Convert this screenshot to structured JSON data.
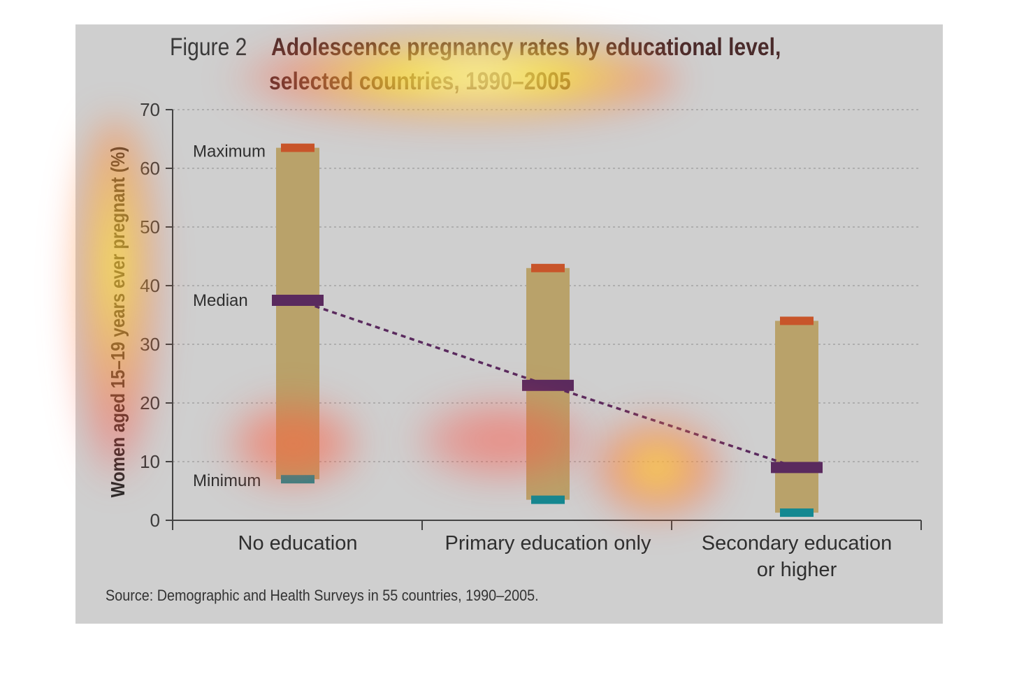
{
  "figure": {
    "prefix": "Figure 2",
    "title_line1": "Adolescence pregnancy rates by educational level,",
    "title_line2": "selected countries, 1990–2005",
    "source": "Source: Demographic and Health Surveys in 55 countries, 1990–2005."
  },
  "colors": {
    "panel": "#cfcfcf",
    "range_bar": "#b9a26a",
    "maximum": "#c8552a",
    "median": "#5a2a5e",
    "minimum": "#138891",
    "trend": "#5a2a5e",
    "grid": "#9a9a9a",
    "axis": "#444444"
  },
  "chart_data": {
    "type": "bar",
    "title": "Adolescence pregnancy rates by educational level, selected countries, 1990–2005",
    "ylabel": "Women aged 15–19 years ever pregnant (%)",
    "xlabel": "",
    "ylim": [
      0,
      70
    ],
    "yticks": [
      0,
      10,
      20,
      30,
      40,
      50,
      60,
      70
    ],
    "grid": true,
    "categories": [
      "No education",
      "Primary education only",
      "Secondary education\nor higher"
    ],
    "series": [
      {
        "name": "Maximum",
        "values": [
          63.5,
          43,
          34
        ]
      },
      {
        "name": "Median",
        "values": [
          37.5,
          23,
          9
        ]
      },
      {
        "name": "Minimum",
        "values": [
          7,
          3.5,
          1.3
        ]
      }
    ],
    "annotations": [
      "Maximum",
      "Median",
      "Minimum"
    ],
    "trend_line": "median"
  }
}
